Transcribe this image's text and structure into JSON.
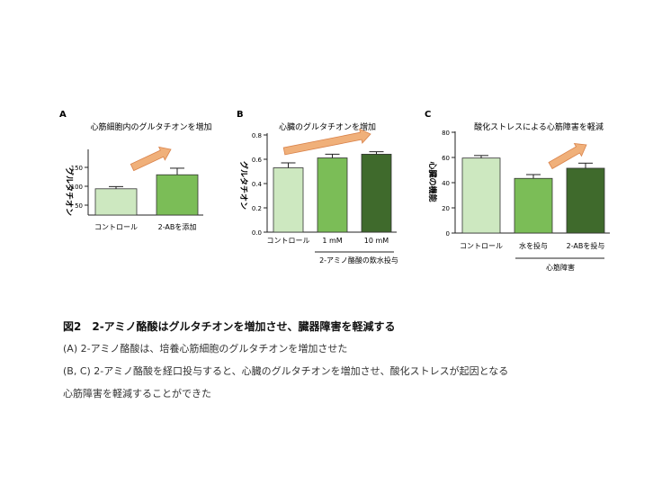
{
  "colors": {
    "control": "#cde8c0",
    "mid": "#7bbd57",
    "dark": "#3f6a2c",
    "arrow_fill": "#f0b07a",
    "arrow_stroke": "#d9824a"
  },
  "chart_data": [
    {
      "panel": "A",
      "type": "bar",
      "title": "心筋細胞内のグルタチオンを増加",
      "ylabel": "グルタチオン",
      "yticks": [
        "150",
        "100",
        "50"
      ],
      "ylim": [
        50,
        200
      ],
      "categories": [
        "コントロール",
        "2-ABを添加"
      ],
      "values": [
        110,
        142
      ],
      "errors": [
        5,
        15
      ],
      "bar_colors": [
        "control",
        "mid"
      ]
    },
    {
      "panel": "B",
      "type": "bar",
      "title": "心臓のグルタチオンを増加",
      "ylabel": "グルタチオン",
      "yticks": [
        "0.8",
        "0.6",
        "0.4",
        "0.2",
        "0.0"
      ],
      "ylim": [
        0,
        0.8
      ],
      "categories": [
        "コントロール",
        "1 mM",
        "10 mM"
      ],
      "values": [
        0.52,
        0.6,
        0.63
      ],
      "errors": [
        0.04,
        0.03,
        0.02
      ],
      "bar_colors": [
        "control",
        "mid",
        "dark"
      ],
      "group_label": "2-アミノ酪酸の飲水投与"
    },
    {
      "panel": "C",
      "type": "bar",
      "title": "酸化ストレスによる心筋障害を軽減",
      "ylabel": "心臓の機能",
      "yticks": [
        "80",
        "60",
        "40",
        "20",
        "0"
      ],
      "ylim": [
        0,
        80
      ],
      "categories": [
        "コントロール",
        "水を投与",
        "2-ABを投与"
      ],
      "values": [
        59,
        43,
        51
      ],
      "errors": [
        2,
        3,
        4
      ],
      "bar_colors": [
        "control",
        "mid",
        "dark"
      ],
      "group_label": "心筋障害"
    }
  ],
  "caption": {
    "title": "図2　2-アミノ酪酸はグルタチオンを増加させ、臓器障害を軽減する",
    "line1": "(A) 2-アミノ酪酸は、培養心筋細胞のグルタチオンを増加させた",
    "line2": "(B, C) 2-アミノ酪酸を経口投与すると、心臓のグルタチオンを増加させ、酸化ストレスが起因となる",
    "line3": "心筋障害を軽減することができた"
  }
}
